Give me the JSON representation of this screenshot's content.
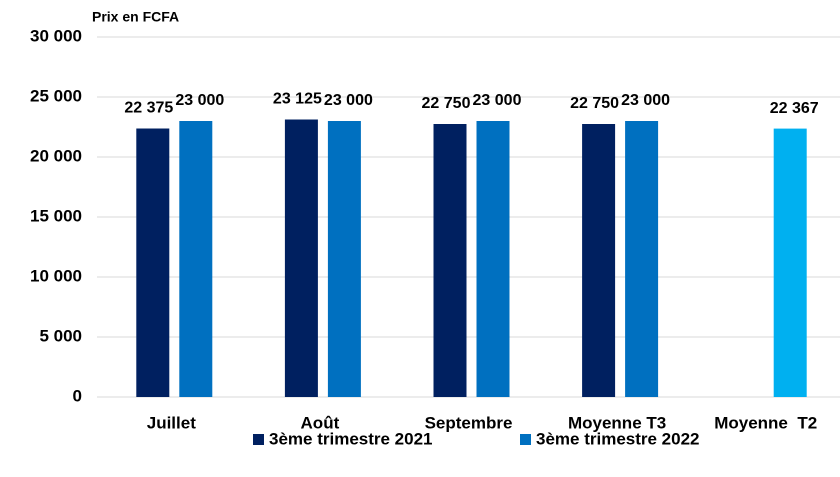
{
  "chart_data": {
    "type": "bar",
    "y_axis_label": "Prix en FCFA",
    "categories": [
      "Juillet",
      "Août",
      "Septembre",
      "Moyenne T3",
      "Moyenne  T2"
    ],
    "series": [
      {
        "name": "3ème trimestre 2021",
        "color": "#002060",
        "values": [
          22375,
          23125,
          22750,
          22750,
          null
        ],
        "value_labels": [
          "22 375",
          "23 125",
          "22 750",
          "22 750",
          null
        ]
      },
      {
        "name": "3ème trimestre 2022",
        "color": "#0070c0",
        "colors": [
          "#0070c0",
          "#0070c0",
          "#0070c0",
          "#0070c0",
          "#00b0f0"
        ],
        "values": [
          23000,
          23000,
          23000,
          23000,
          22367
        ],
        "value_labels": [
          "23 000",
          "23 000",
          "23 000",
          "23 000",
          "22 367"
        ]
      }
    ],
    "ylim": [
      0,
      30000
    ],
    "yticks": [
      0,
      {
        "value": 5000,
        "label": "5 000"
      },
      {
        "value": 10000,
        "label": "10 000"
      },
      {
        "value": 15000,
        "label": "15 000"
      },
      {
        "value": 20000,
        "label": "20 000"
      },
      {
        "value": 25000,
        "label": "25 000"
      },
      {
        "value": 30000,
        "label": "30 000"
      }
    ],
    "grid": true,
    "legend": "bottom"
  }
}
